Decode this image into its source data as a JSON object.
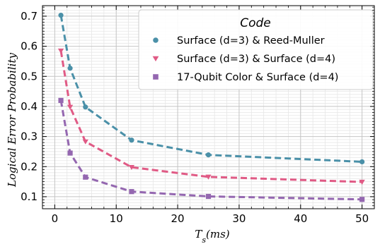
{
  "chart_data": {
    "type": "line",
    "x": [
      1,
      2.5,
      5,
      12.5,
      25,
      50
    ],
    "xlabel": "Ts(ms)",
    "ylabel": "Logical Error Probability",
    "xlim": [
      -2,
      52
    ],
    "ylim": [
      0.06,
      0.735
    ],
    "xticks": [
      "0",
      "10",
      "20",
      "30",
      "40",
      "50"
    ],
    "yticks": [
      "0.1",
      "0.2",
      "0.3",
      "0.4",
      "0.5",
      "0.6",
      "0.7"
    ],
    "grid": true,
    "legend": {
      "title": "Code",
      "placement": "top-right"
    },
    "series": [
      {
        "name": "Surface (d=3) & Reed-Muller",
        "values": [
          0.703,
          0.527,
          0.398,
          0.288,
          0.239,
          0.216
        ],
        "color": "#4a90a8",
        "marker": "circle"
      },
      {
        "name": "Surface (d=3) & Surface (d=4)",
        "values": [
          0.585,
          0.398,
          0.283,
          0.198,
          0.166,
          0.149
        ],
        "color": "#e05a85",
        "marker": "triangle-down"
      },
      {
        "name": "17-Qubit Color & Surface (d=4)",
        "values": [
          0.42,
          0.245,
          0.165,
          0.117,
          0.101,
          0.091
        ],
        "color": "#9467b0",
        "marker": "square"
      }
    ]
  }
}
